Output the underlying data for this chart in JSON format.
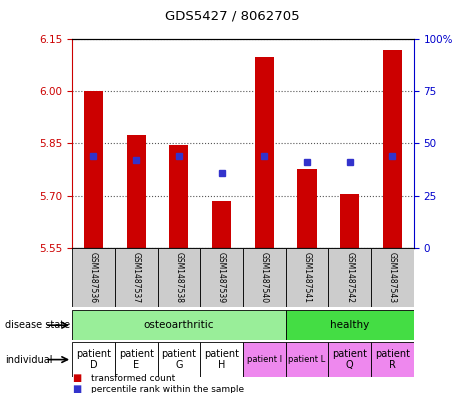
{
  "title": "GDS5427 / 8062705",
  "samples": [
    "GSM1487536",
    "GSM1487537",
    "GSM1487538",
    "GSM1487539",
    "GSM1487540",
    "GSM1487541",
    "GSM1487542",
    "GSM1487543"
  ],
  "bar_values": [
    6.0,
    5.875,
    5.845,
    5.685,
    6.1,
    5.775,
    5.705,
    6.12
  ],
  "percentile_values": [
    44,
    42,
    44,
    36,
    44,
    41,
    41,
    44
  ],
  "ylim_left": [
    5.55,
    6.15
  ],
  "ylim_right": [
    0,
    100
  ],
  "left_ticks": [
    5.55,
    5.7,
    5.85,
    6.0,
    6.15
  ],
  "right_ticks": [
    0,
    25,
    50,
    75,
    100
  ],
  "bar_color": "#cc0000",
  "dot_color": "#3333cc",
  "bar_width": 0.45,
  "disease_state_groups": [
    {
      "label": "osteoarthritic",
      "start": 0,
      "end": 4,
      "color": "#99ee99"
    },
    {
      "label": "healthy",
      "start": 5,
      "end": 7,
      "color": "#44dd44"
    }
  ],
  "individual_labels": [
    "patient\nD",
    "patient\nE",
    "patient\nG",
    "patient\nH",
    "patient I",
    "patient L",
    "patient\nQ",
    "patient\nR"
  ],
  "individual_colors": [
    "#ffffff",
    "#ffffff",
    "#ffffff",
    "#ffffff",
    "#ee88ee",
    "#ee88ee",
    "#ee88ee",
    "#ee88ee"
  ],
  "individual_fontsize": [
    7,
    7,
    7,
    7,
    6,
    6,
    7,
    7
  ],
  "disease_state_label": "disease state",
  "individual_label": "individual",
  "legend_red": "transformed count",
  "legend_blue": "percentile rank within the sample",
  "ytick_color_left": "#cc0000",
  "ytick_color_right": "#0000cc",
  "grid_color": "#555555",
  "sample_box_color": "#cccccc",
  "fig_width": 4.65,
  "fig_height": 3.93,
  "dpi": 100
}
